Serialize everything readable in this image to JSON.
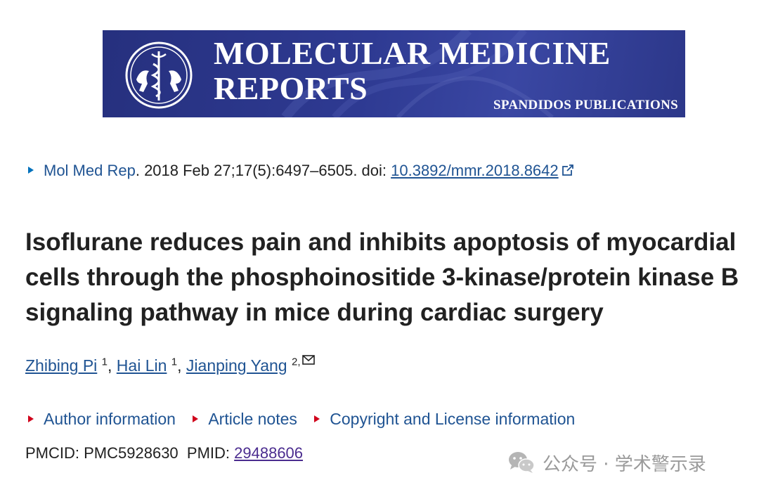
{
  "banner": {
    "title": "MOLECULAR MEDICINE\nREPORTS",
    "publisher": "SPANDIDOS PUBLICATIONS",
    "background_color": "#2e3a92"
  },
  "citation": {
    "journal": "Mol Med Rep",
    "details": ". 2018 Feb 27;17(5):6497–6505. doi: ",
    "doi": "10.3892/mmr.2018.8642",
    "external_icon": "external-link-icon"
  },
  "article": {
    "title": "Isoflurane reduces pain and inhibits apoptosis of myocardial cells through the phosphoinositide 3-kinase/protein kinase B signaling pathway in mice during cardiac surgery"
  },
  "authors": [
    {
      "name": "Zhibing Pi",
      "affiliation": "1"
    },
    {
      "name": "Hai Lin",
      "affiliation": "1"
    },
    {
      "name": "Jianping Yang",
      "affiliation": "2,"
    }
  ],
  "author_separator": ", ",
  "info_links": [
    {
      "label": "Author information"
    },
    {
      "label": "Article notes"
    },
    {
      "label": "Copyright and License information"
    }
  ],
  "ids": {
    "pmcid_label": "PMCID: ",
    "pmcid": "PMC5928630",
    "pmid_label": "PMID: ",
    "pmid": "29488606"
  },
  "watermark": {
    "text": "公众号 · 学术警示录"
  },
  "colors": {
    "link": "#205493",
    "visited_link": "#4b2c8f",
    "marker_blue": "#0071bc",
    "marker_red": "#d0021b"
  }
}
